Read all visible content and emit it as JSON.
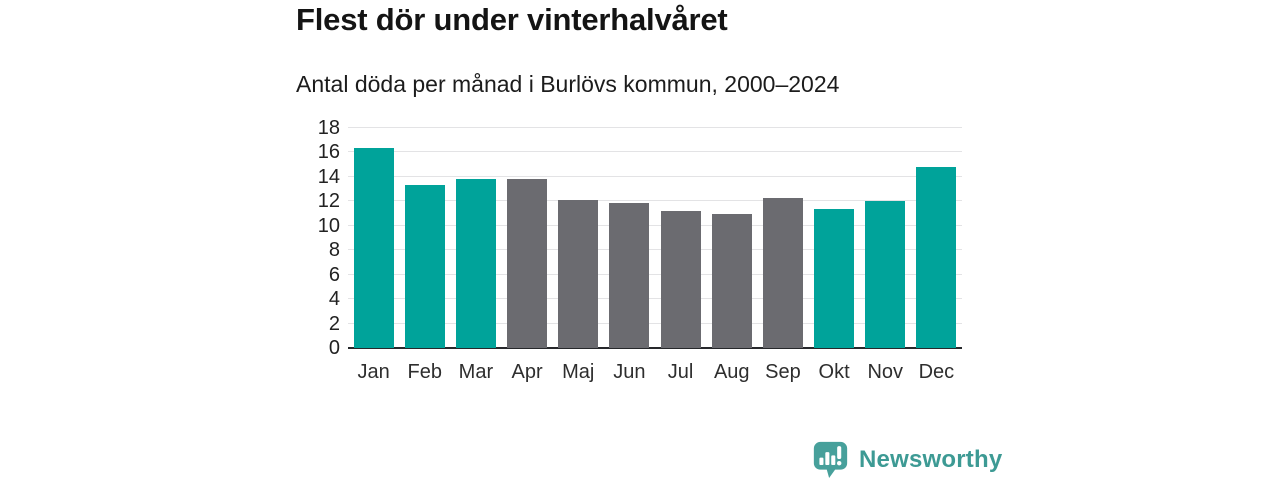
{
  "header": {
    "title": "Flest dör under vinterhalvåret",
    "subtitle": "Antal döda per månad i Burlövs kommun, 2000–2024"
  },
  "chart_data": {
    "type": "bar",
    "title": "Flest dör under vinterhalvåret",
    "subtitle": "Antal döda per månad i Burlövs kommun, 2000–2024",
    "categories": [
      "Jan",
      "Feb",
      "Mar",
      "Apr",
      "Maj",
      "Jun",
      "Jul",
      "Aug",
      "Sep",
      "Okt",
      "Nov",
      "Dec"
    ],
    "values": [
      16.4,
      13.3,
      13.8,
      13.8,
      12.1,
      11.9,
      11.2,
      11.0,
      12.3,
      11.4,
      12.0,
      14.8
    ],
    "bar_colors": [
      "#00a39a",
      "#00a39a",
      "#00a39a",
      "#6b6b70",
      "#6b6b70",
      "#6b6b70",
      "#6b6b70",
      "#6b6b70",
      "#6b6b70",
      "#00a39a",
      "#00a39a",
      "#00a39a"
    ],
    "palette": {
      "highlight_winter": "#00a39a",
      "muted_summer": "#6b6b70"
    },
    "xlabel": "",
    "ylabel": "",
    "ylim": [
      0,
      18
    ],
    "yticks": [
      0,
      2,
      4,
      6,
      8,
      10,
      12,
      14,
      16,
      18
    ],
    "grid": "horizontal",
    "legend": "none"
  },
  "footer": {
    "brand": "Newsworthy",
    "brand_color": "#3d9a94",
    "logo_icon_color": "#47a09b",
    "logo_icon": "bar-chart-speech-bubble-icon"
  }
}
